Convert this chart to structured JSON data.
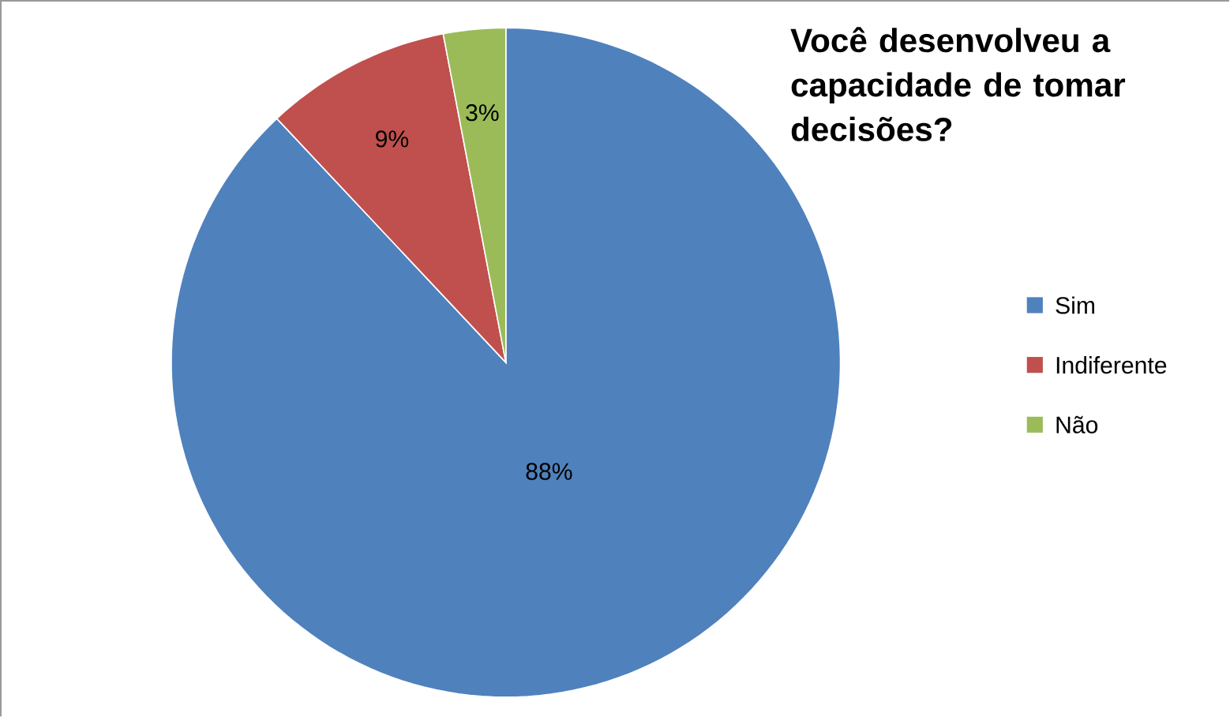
{
  "chart_data": {
    "type": "pie",
    "title": "Você desenvolveu a capacidade de tomar decisões?",
    "categories": [
      "Sim",
      "Indiferente",
      "Não"
    ],
    "values": [
      88,
      9,
      3
    ],
    "colors": [
      "#4f81bd",
      "#c0504d",
      "#9bbb59"
    ],
    "value_labels": [
      "88%",
      "9%",
      "3%"
    ],
    "legend": "right"
  }
}
